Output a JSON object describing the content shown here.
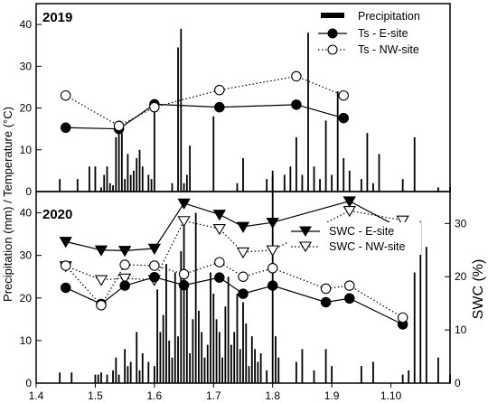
{
  "chart_data": [
    {
      "type": "line",
      "panel_label": "2019",
      "ylabel": "Precipitation (mm) / Temperature (°C)",
      "ylim": [
        0,
        45
      ],
      "yticks": [
        0,
        10,
        20,
        30,
        40
      ],
      "xlim_month": [
        1.4,
        2.1
      ],
      "grid": false,
      "legend_position": "top-right",
      "legend": [
        "Precipitation",
        "Ts - E-site",
        "Ts - NW-site"
      ],
      "series": [
        {
          "name": "Ts - E-site",
          "marker": "filled-circle",
          "line": "solid",
          "color": "#000000",
          "x": [
            1.45,
            1.54,
            1.6,
            1.71,
            1.84,
            1.92
          ],
          "y": [
            15.3,
            15.0,
            20.9,
            20.2,
            20.8,
            17.6
          ]
        },
        {
          "name": "Ts - NW-site",
          "marker": "open-circle",
          "line": "dotted",
          "color": "#000000",
          "x": [
            1.45,
            1.54,
            1.6,
            1.71,
            1.84,
            1.92
          ],
          "y": [
            23.0,
            15.7,
            20.2,
            24.3,
            27.6,
            23.0
          ]
        },
        {
          "name": "Precipitation",
          "marker": "bar",
          "color": "#000000",
          "x": [
            1.44,
            1.47,
            1.49,
            1.5,
            1.51,
            1.515,
            1.52,
            1.525,
            1.53,
            1.535,
            1.54,
            1.545,
            1.55,
            1.555,
            1.56,
            1.565,
            1.57,
            1.575,
            1.58,
            1.59,
            1.595,
            1.6,
            1.63,
            1.64,
            1.645,
            1.65,
            1.655,
            1.66,
            1.7,
            1.74,
            1.75,
            1.79,
            1.8,
            1.82,
            1.83,
            1.84,
            1.85,
            1.86,
            1.87,
            1.88,
            1.89,
            1.9,
            1.91,
            1.92,
            1.93,
            1.95,
            1.96,
            1.97,
            1.98,
            2.02,
            2.04,
            2.08,
            2.1
          ],
          "y": [
            3,
            3,
            6,
            6,
            1,
            4,
            6,
            2,
            1.5,
            13,
            17,
            14,
            3,
            9,
            4,
            5,
            8,
            10,
            6,
            4,
            3,
            20,
            2,
            34.5,
            39,
            2,
            4,
            11,
            18,
            2,
            8,
            3,
            5,
            4,
            6,
            13,
            4,
            38,
            6,
            3,
            17,
            4,
            24,
            8,
            5,
            3,
            14,
            2,
            9,
            3,
            13,
            1,
            1
          ]
        }
      ]
    },
    {
      "type": "line",
      "panel_label": "2020",
      "ylabel": "Precipitation (mm) / Temperature (°C)",
      "y2label": "SWC (%)",
      "ylim": [
        0,
        45
      ],
      "y2lim": [
        0,
        36
      ],
      "yticks": [
        0,
        10,
        20,
        30,
        40
      ],
      "y2ticks": [
        0,
        10,
        20,
        30
      ],
      "xlim_month": [
        1.4,
        2.1
      ],
      "xticks": [
        "1.4",
        "1.5",
        "1.6",
        "1.7",
        "1.8",
        "1.9",
        "1.10"
      ],
      "grid": false,
      "legend_position": "right",
      "legend": [
        "SWC - E-site",
        "SWC - NW-site"
      ],
      "series": [
        {
          "name": "SWC - E-site",
          "axis": "right",
          "marker": "filled-triangle-down",
          "line": "solid",
          "color": "#000000",
          "x": [
            1.45,
            1.51,
            1.55,
            1.6,
            1.65,
            1.71,
            1.75,
            1.8,
            1.93,
            2.02
          ],
          "y": [
            26.6,
            25.0,
            24.9,
            25.3,
            33.8,
            31.7,
            29.4,
            30.2,
            34.2,
            28.9
          ]
        },
        {
          "name": "SWC - NW-site",
          "axis": "right",
          "marker": "open-triangle-down",
          "line": "dotted",
          "color": "#000000",
          "x": [
            1.45,
            1.51,
            1.55,
            1.6,
            1.65,
            1.71,
            1.75,
            1.8,
            1.93,
            2.02
          ],
          "y": [
            22.0,
            19.4,
            19.7,
            19.4,
            30.5,
            29.0,
            24.6,
            25.0,
            32.4,
            30.6
          ]
        },
        {
          "name": "Ts - E-site",
          "axis": "left",
          "marker": "filled-circle",
          "line": "solid",
          "color": "#000000",
          "x": [
            1.45,
            1.51,
            1.55,
            1.6,
            1.65,
            1.71,
            1.75,
            1.8,
            1.89,
            1.93,
            2.02
          ],
          "y": [
            22.4,
            18.6,
            22.9,
            24.9,
            23.0,
            24.8,
            21.0,
            22.9,
            19.0,
            19.9,
            13.8
          ]
        },
        {
          "name": "Ts - NW-site",
          "axis": "left",
          "marker": "open-circle",
          "line": "dotted",
          "color": "#000000",
          "x": [
            1.45,
            1.51,
            1.55,
            1.6,
            1.65,
            1.71,
            1.75,
            1.8,
            1.89,
            1.93,
            2.02
          ],
          "y": [
            27.6,
            18.3,
            27.8,
            27.6,
            25.6,
            28.4,
            25.0,
            27.0,
            22.2,
            22.9,
            15.4
          ]
        },
        {
          "name": "Precipitation",
          "axis": "left",
          "marker": "bar",
          "color": "#000000",
          "x": [
            1.44,
            1.46,
            1.5,
            1.505,
            1.51,
            1.52,
            1.53,
            1.535,
            1.54,
            1.55,
            1.555,
            1.56,
            1.57,
            1.575,
            1.58,
            1.59,
            1.6,
            1.605,
            1.61,
            1.615,
            1.62,
            1.625,
            1.63,
            1.635,
            1.64,
            1.645,
            1.65,
            1.655,
            1.66,
            1.665,
            1.67,
            1.675,
            1.68,
            1.685,
            1.69,
            1.695,
            1.7,
            1.705,
            1.71,
            1.715,
            1.72,
            1.725,
            1.73,
            1.735,
            1.74,
            1.745,
            1.75,
            1.755,
            1.76,
            1.765,
            1.77,
            1.775,
            1.78,
            1.79,
            1.8,
            1.805,
            1.81,
            1.84,
            1.85,
            1.87,
            1.89,
            1.9,
            1.95,
            1.97,
            2.02,
            2.03,
            2.04,
            2.05,
            2.06,
            2.08,
            2.1
          ],
          "y": [
            2.5,
            2.5,
            2,
            2,
            2.5,
            2,
            3,
            6,
            2,
            8,
            4,
            5,
            12,
            3,
            7,
            5,
            4,
            22,
            12,
            16,
            28,
            10,
            6,
            26,
            11,
            31,
            37.5,
            23,
            7,
            15,
            40,
            17,
            12,
            6,
            9,
            26,
            21,
            15,
            12,
            6,
            18,
            25,
            9,
            12,
            21,
            8,
            19,
            14,
            4,
            11,
            8,
            5,
            7,
            3,
            48.5,
            11,
            6,
            5,
            8,
            3,
            8,
            4,
            4,
            5,
            2,
            3,
            26,
            38,
            32,
            6,
            2
          ]
        }
      ]
    }
  ],
  "labels": {
    "y_left": "Precipitation (mm) / Temperature (°C)",
    "y_right": "SWC (%)",
    "year_top": "2019",
    "year_bottom": "2020",
    "legend_top": [
      "Precipitation",
      "Ts - E-site",
      "Ts - NW-site"
    ],
    "legend_bottom": [
      "SWC - E-site",
      "SWC - NW-site"
    ]
  }
}
